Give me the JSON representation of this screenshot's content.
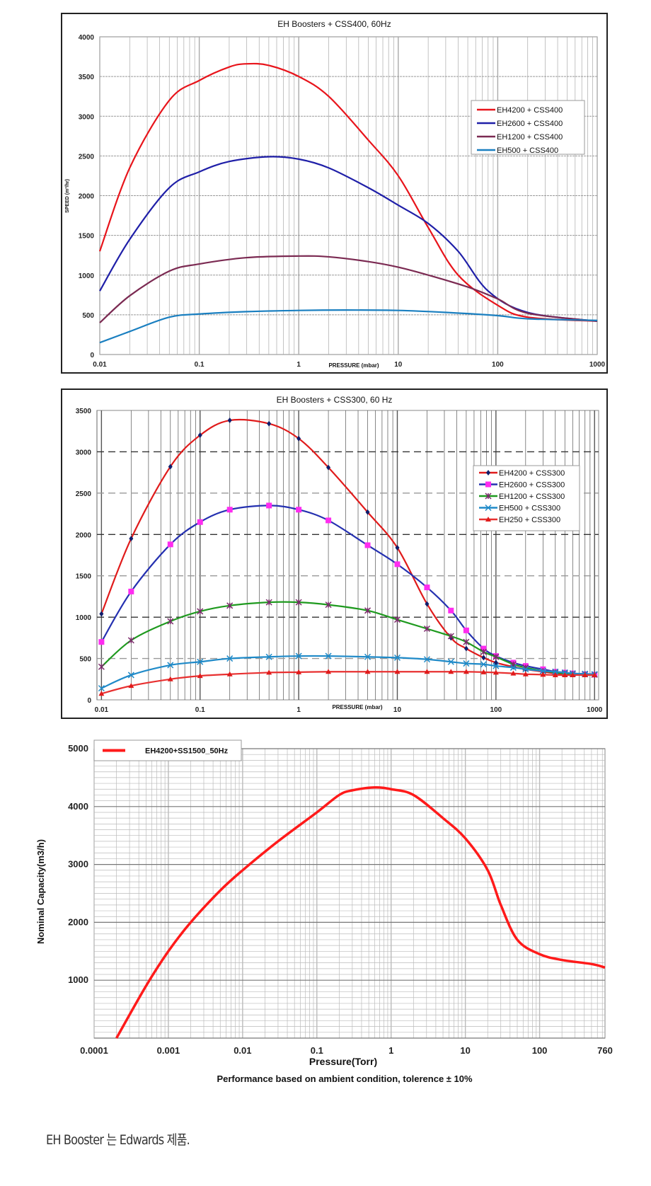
{
  "chart_data": [
    {
      "type": "line",
      "title": "EH Boosters + CSS400, 60Hz",
      "xlabel": "PRESSURE (mbar)",
      "ylabel": "SPEED (m³/hr)",
      "xscale": "log",
      "xlim": [
        0.01,
        1000
      ],
      "ylim": [
        0,
        4000
      ],
      "xticks": [
        "0.01",
        "0.1",
        "1",
        "10",
        "100",
        "1000"
      ],
      "yticks": [
        "0",
        "500",
        "1000",
        "1500",
        "2000",
        "2500",
        "3000",
        "3500",
        "4000"
      ],
      "grid": true,
      "legend": "right",
      "series": [
        {
          "name": "EH4200 + CSS400",
          "color": "#e8141b",
          "x": [
            0.01,
            0.02,
            0.05,
            0.1,
            0.2,
            0.3,
            0.5,
            1,
            2,
            5,
            10,
            20,
            40,
            100,
            200,
            1000
          ],
          "y": [
            1300,
            2350,
            3200,
            3450,
            3620,
            3660,
            3640,
            3500,
            3250,
            2700,
            2250,
            1600,
            1000,
            620,
            470,
            420
          ]
        },
        {
          "name": "EH2600 + CSS400",
          "color": "#1f1fa8",
          "x": [
            0.01,
            0.02,
            0.05,
            0.1,
            0.2,
            0.5,
            1,
            2,
            5,
            10,
            20,
            40,
            80,
            200,
            1000
          ],
          "y": [
            800,
            1450,
            2100,
            2300,
            2430,
            2490,
            2460,
            2350,
            2100,
            1880,
            1650,
            1300,
            800,
            530,
            420
          ]
        },
        {
          "name": "EH1200 + CSS400",
          "color": "#7b2a52",
          "x": [
            0.01,
            0.02,
            0.05,
            0.1,
            0.3,
            1,
            2,
            5,
            10,
            20,
            50,
            100,
            200,
            1000
          ],
          "y": [
            400,
            740,
            1050,
            1140,
            1220,
            1240,
            1230,
            1170,
            1100,
            1000,
            850,
            700,
            520,
            420
          ]
        },
        {
          "name": "EH500 + CSS400",
          "color": "#1a7fc0",
          "x": [
            0.01,
            0.02,
            0.05,
            0.1,
            0.3,
            1,
            3,
            10,
            30,
            100,
            200,
            1000
          ],
          "y": [
            150,
            290,
            470,
            510,
            540,
            555,
            560,
            555,
            530,
            490,
            450,
            430
          ]
        }
      ]
    },
    {
      "type": "line",
      "title": "EH Boosters + CSS300, 60 Hz",
      "xlabel": "PRESSURE (mbar)",
      "xscale": "log",
      "xlim": [
        0.009,
        1100
      ],
      "ylim": [
        0,
        3500
      ],
      "xticks": [
        "0.01",
        "0.1",
        "1",
        "10",
        "100",
        "1000"
      ],
      "yticks": [
        "0",
        "500",
        "1000",
        "1500",
        "2000",
        "2500",
        "3000",
        "3500"
      ],
      "grid": true,
      "legend": "right",
      "x": [
        0.01,
        0.02,
        0.05,
        0.1,
        0.2,
        0.5,
        1,
        2,
        5,
        10,
        20,
        35,
        50,
        75,
        100,
        150,
        200,
        300,
        400,
        500,
        600,
        800,
        1000
      ],
      "series": [
        {
          "name": "EH4200 + CSS300",
          "color": "#e01b1b",
          "marker": "diamond",
          "marker_color": "#0f1d6b",
          "values": [
            1040,
            1950,
            2820,
            3200,
            3380,
            3340,
            3160,
            2810,
            2270,
            1840,
            1160,
            750,
            620,
            510,
            450,
            400,
            370,
            340,
            320,
            310,
            310,
            305,
            300
          ]
        },
        {
          "name": "EH2600 + CSS300",
          "color": "#2430b0",
          "marker": "square",
          "marker_color": "#ff2cf0",
          "values": [
            700,
            1310,
            1880,
            2150,
            2300,
            2350,
            2300,
            2170,
            1870,
            1640,
            1360,
            1080,
            840,
            620,
            530,
            450,
            410,
            370,
            340,
            330,
            320,
            310,
            305
          ]
        },
        {
          "name": "EH1200 + CSS300",
          "color": "#1f9a1f",
          "marker": "x",
          "marker_color": "#7a2a6a",
          "values": [
            400,
            720,
            950,
            1070,
            1140,
            1180,
            1180,
            1150,
            1080,
            970,
            860,
            770,
            700,
            580,
            520,
            430,
            390,
            350,
            330,
            320,
            315,
            310,
            305
          ]
        },
        {
          "name": "EH500 + CSS300",
          "color": "#1f8ac8",
          "marker": "asterisk",
          "marker_color": "#1f8ac8",
          "values": [
            140,
            300,
            420,
            460,
            500,
            520,
            530,
            530,
            520,
            510,
            490,
            460,
            440,
            430,
            410,
            390,
            370,
            350,
            340,
            330,
            320,
            315,
            310
          ]
        },
        {
          "name": "EH250 + CSS300",
          "color": "#e83030",
          "marker": "triangle",
          "marker_color": "#e01b1b",
          "values": [
            75,
            170,
            250,
            290,
            310,
            330,
            335,
            340,
            340,
            340,
            340,
            340,
            340,
            335,
            330,
            320,
            310,
            305,
            300,
            300,
            300,
            300,
            300
          ]
        }
      ]
    },
    {
      "type": "line",
      "xlabel": "Pressure(Torr)",
      "ylabel": "Nominal Capacity(m3/h)",
      "note": "Performance based on ambient condition, tolerence ± 10%",
      "xscale": "log",
      "xlim": [
        0.0001,
        760
      ],
      "ylim": [
        0,
        5000
      ],
      "xticks": [
        "0.0001",
        "0.001",
        "0.01",
        "0.1",
        "1",
        "10",
        "100",
        "760"
      ],
      "yticks": [
        "1000",
        "2000",
        "3000",
        "4000",
        "5000"
      ],
      "grid": true,
      "legend": "top-left",
      "series": [
        {
          "name": "EH4200+SS1500_50Hz",
          "color": "#ff1a1a",
          "x": [
            0.0002,
            0.0005,
            0.001,
            0.002,
            0.005,
            0.01,
            0.03,
            0.1,
            0.2,
            0.3,
            0.6,
            1,
            2,
            5,
            10,
            20,
            30,
            50,
            100,
            200,
            500,
            760
          ],
          "y": [
            0,
            900,
            1500,
            2000,
            2550,
            2900,
            3400,
            3900,
            4200,
            4280,
            4330,
            4300,
            4200,
            3800,
            3450,
            2900,
            2300,
            1700,
            1450,
            1350,
            1280,
            1220
          ]
        }
      ]
    }
  ],
  "footer": "EH Booster 는 Edwards 제품."
}
